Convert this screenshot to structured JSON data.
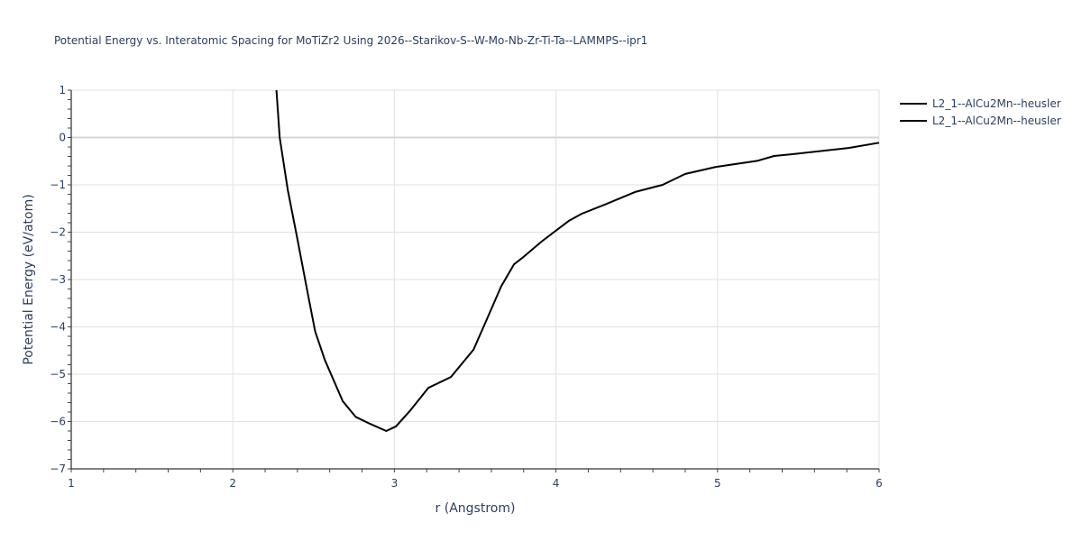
{
  "chart_data": {
    "type": "line",
    "title": "Potential Energy vs. Interatomic Spacing for MoTiZr2 Using 2026--Starikov-S--W-Mo-Nb-Zr-Ti-Ta--LAMMPS--ipr1",
    "xlabel": "r (Angstrom)",
    "ylabel": "Potential Energy (eV/atom)",
    "xlim": [
      1,
      6
    ],
    "ylim": [
      -7,
      1
    ],
    "xticks": [
      1,
      2,
      3,
      4,
      5,
      6
    ],
    "yticks": [
      1,
      0,
      -1,
      -2,
      -3,
      -4,
      -5,
      -6,
      -7
    ],
    "xtick_labels": [
      "1",
      "2",
      "3",
      "4",
      "5",
      "6"
    ],
    "ytick_labels": [
      "1",
      "0",
      "−1",
      "−2",
      "−3",
      "−4",
      "−5",
      "−6",
      "−7"
    ],
    "grid": true,
    "legend_position": "top-right-outside",
    "series": [
      {
        "name": "L2_1--AlCu2Mn--heusler",
        "color": "#000000",
        "x": [
          2.27,
          2.29,
          2.34,
          2.4,
          2.47,
          2.51,
          2.57,
          2.68,
          2.76,
          2.85,
          2.95,
          3.01,
          3.1,
          3.21,
          3.35,
          3.49,
          3.57,
          3.66,
          3.74,
          3.8,
          3.91,
          4.08,
          4.16,
          4.3,
          4.49,
          4.66,
          4.8,
          4.99,
          5.25,
          5.35,
          5.47,
          5.81,
          6.0
        ],
        "y": [
          1.0,
          0.0,
          -1.1,
          -2.15,
          -3.4,
          -4.1,
          -4.7,
          -5.57,
          -5.9,
          -6.05,
          -6.2,
          -6.1,
          -5.76,
          -5.29,
          -5.06,
          -4.48,
          -3.86,
          -3.15,
          -2.68,
          -2.52,
          -2.2,
          -1.76,
          -1.61,
          -1.42,
          -1.15,
          -1.0,
          -0.77,
          -0.62,
          -0.49,
          -0.39,
          -0.35,
          -0.22,
          -0.11
        ]
      },
      {
        "name": "L2_1--AlCu2Mn--heusler",
        "color": "#000000",
        "x": [],
        "y": []
      }
    ]
  },
  "legend": {
    "items": [
      {
        "label": "L2_1--AlCu2Mn--heusler"
      },
      {
        "label": "L2_1--AlCu2Mn--heusler"
      }
    ]
  }
}
